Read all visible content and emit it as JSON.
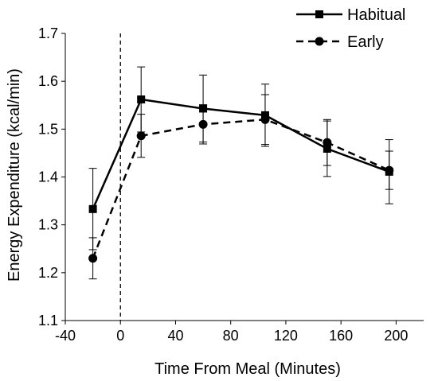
{
  "chart_data": {
    "type": "line",
    "title": "",
    "xlabel": "Time From Meal (Minutes)",
    "ylabel": "Energy Expenditure (kcal/min)",
    "xlim": [
      -40,
      220
    ],
    "ylim": [
      1.1,
      1.7
    ],
    "x_ticks": [
      -40,
      0,
      40,
      80,
      120,
      160,
      200
    ],
    "x_tick_labels": [
      "-40",
      "0",
      "40",
      "80",
      "120",
      "160",
      "200"
    ],
    "y_ticks": [
      1.1,
      1.2,
      1.3,
      1.4,
      1.5,
      1.6,
      1.7
    ],
    "y_tick_labels": [
      "1.1",
      "1.2",
      "1.3",
      "1.4",
      "1.5",
      "1.6",
      "1.7"
    ],
    "reference_line_x": 0,
    "grid": false,
    "legend_position": "top-right",
    "series": [
      {
        "name": "Habitual",
        "line_style": "solid",
        "marker": "square",
        "color": "#000000",
        "x": [
          -20,
          15,
          60,
          105,
          150,
          195
        ],
        "y": [
          1.333,
          1.562,
          1.543,
          1.529,
          1.459,
          1.411
        ],
        "error": [
          0.085,
          0.068,
          0.07,
          0.065,
          0.058,
          0.067
        ]
      },
      {
        "name": "Early",
        "line_style": "dashed",
        "marker": "circle",
        "color": "#000000",
        "x": [
          -20,
          15,
          60,
          105,
          150,
          195
        ],
        "y": [
          1.23,
          1.486,
          1.51,
          1.52,
          1.472,
          1.414
        ],
        "error": [
          0.043,
          0.045,
          0.041,
          0.052,
          0.048,
          0.04
        ]
      }
    ]
  }
}
